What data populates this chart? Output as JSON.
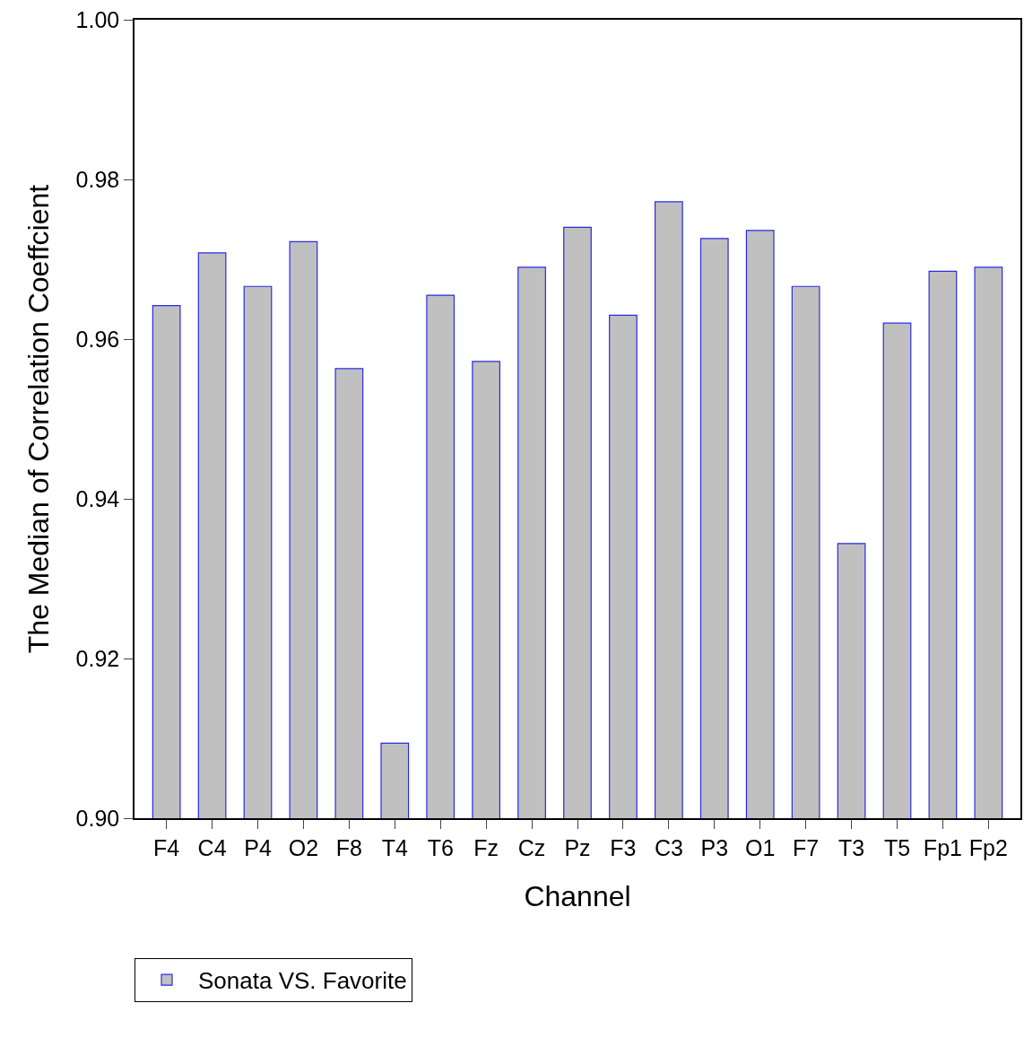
{
  "chart_data": {
    "type": "bar",
    "xlabel": "Channel",
    "ylabel": "The Median of Correlation Coeffcient",
    "categories": [
      "F4",
      "C4",
      "P4",
      "O2",
      "F8",
      "T4",
      "T6",
      "Fz",
      "Cz",
      "Pz",
      "F3",
      "C3",
      "P3",
      "O1",
      "F7",
      "T3",
      "T5",
      "Fp1",
      "Fp2"
    ],
    "series": [
      {
        "name": "Sonata VS. Favorite",
        "color": "#c0c0c0",
        "values": [
          0.9642,
          0.9708,
          0.9666,
          0.9722,
          0.9563,
          0.9094,
          0.9655,
          0.9572,
          0.969,
          0.974,
          0.963,
          0.9772,
          0.9726,
          0.9736,
          0.9666,
          0.9344,
          0.962,
          0.9685,
          0.969
        ]
      }
    ],
    "ylim": [
      0.9,
      1.0
    ],
    "yticks": [
      {
        "value": 0.9,
        "label": "0.90"
      },
      {
        "value": 0.92,
        "label": "0.92"
      },
      {
        "value": 0.94,
        "label": "0.94"
      },
      {
        "value": 0.96,
        "label": "0.96"
      },
      {
        "value": 0.98,
        "label": "0.98"
      },
      {
        "value": 1.0,
        "label": "1.00"
      }
    ],
    "legend": "bottom left"
  }
}
